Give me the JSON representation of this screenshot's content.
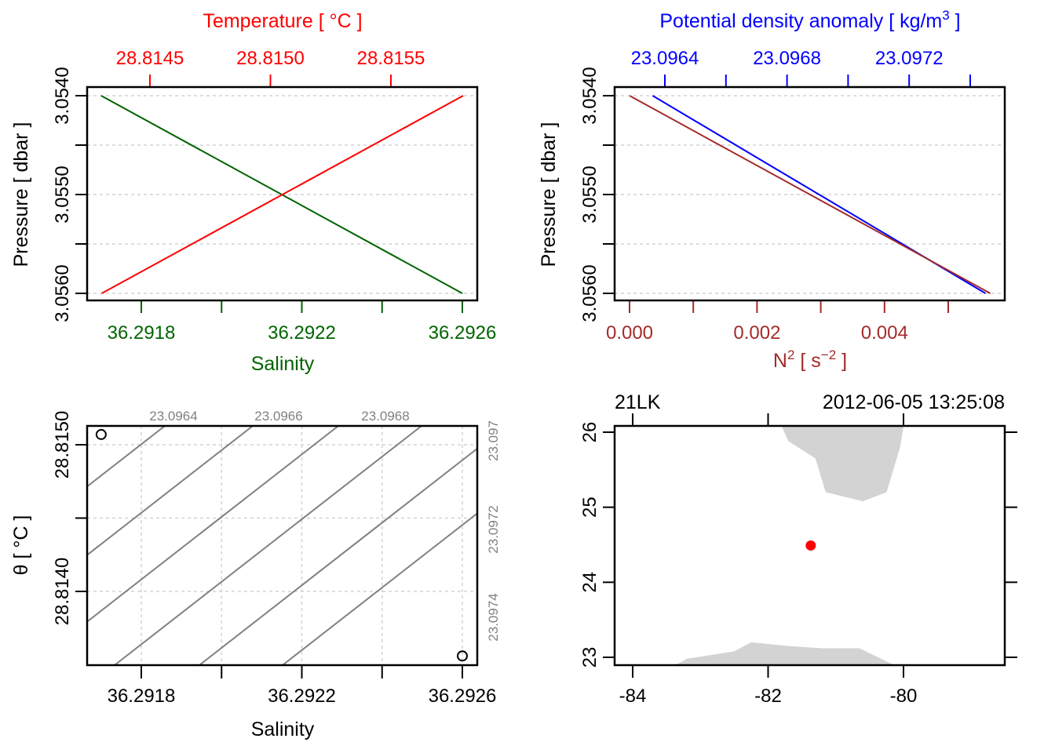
{
  "colors": {
    "temperature": "#ff0000",
    "salinity": "#006400",
    "density": "#0000ff",
    "n2": "#a52a2a",
    "grid": "#d3d3d3",
    "contour": "#808080",
    "land": "#d3d3d3",
    "station": "#ff0000",
    "axis": "#000000"
  },
  "chart_data": [
    {
      "id": "profile-TS",
      "type": "line",
      "ylabel": "Pressure [ dbar ]",
      "yticks": [
        "3.0540",
        "3.0550",
        "3.0560"
      ],
      "ylim": [
        3.056,
        3.054
      ],
      "ygrid": [
        3.054,
        3.0545,
        3.055,
        3.0555,
        3.056
      ],
      "top_axis": {
        "label": "Temperature [ °C ]",
        "ticks": [
          "28.8145",
          "28.8150",
          "28.8155"
        ],
        "tick_values": [
          28.8145,
          28.815,
          28.8155
        ]
      },
      "bottom_axis": {
        "label": "Salinity",
        "ticks": [
          "36.2918",
          "36.2922",
          "36.2926"
        ],
        "tick_values": [
          36.2918,
          36.292,
          36.2922,
          36.2924,
          36.2926
        ]
      },
      "series": [
        {
          "name": "Salinity",
          "x": [
            36.2917,
            36.2926
          ],
          "y": [
            3.054,
            3.056
          ]
        },
        {
          "name": "Temperature",
          "x": [
            28.8143,
            28.8158
          ],
          "y": [
            3.056,
            3.054
          ]
        }
      ]
    },
    {
      "id": "profile-density-N2",
      "type": "line",
      "ylabel": "Pressure [ dbar ]",
      "yticks": [
        "3.0540",
        "3.0550",
        "3.0560"
      ],
      "ylim": [
        3.056,
        3.054
      ],
      "ygrid": [
        3.054,
        3.0545,
        3.055,
        3.0555,
        3.056
      ],
      "top_axis": {
        "label": "Potential density anomaly [ kg/m",
        "label_sup": "3",
        "label_end": " ]",
        "ticks": [
          "23.0964",
          "23.0968",
          "23.0972"
        ],
        "tick_values": [
          23.0964,
          23.0966,
          23.0968,
          23.097,
          23.0972,
          23.0974
        ]
      },
      "bottom_axis": {
        "label": "N",
        "label_sup": "2",
        "label_mid": " [ s",
        "label_sup2": "−2",
        "label_end": " ]",
        "ticks": [
          "0.000",
          "0.002",
          "0.004"
        ],
        "tick_values": [
          0.0,
          0.001,
          0.002,
          0.003,
          0.004,
          0.005
        ]
      },
      "series": [
        {
          "name": "N2",
          "x": [
            0.0,
            0.00566
          ],
          "y": [
            3.054,
            3.056
          ]
        },
        {
          "name": "Potential density anomaly",
          "x": [
            23.09636,
            23.09745
          ],
          "y": [
            3.054,
            3.056
          ]
        }
      ]
    },
    {
      "id": "TS-diagram",
      "type": "scatter",
      "xlabel": "Salinity",
      "ylabel": "θ [ °C ]",
      "xticks": [
        "36.2918",
        "36.2922",
        "36.2926"
      ],
      "xtick_values": [
        36.2918,
        36.292,
        36.2922,
        36.2924,
        36.2926
      ],
      "yticks": [
        "28.8150",
        "28.8140"
      ],
      "ytick_values": [
        28.815,
        28.8145,
        28.814
      ],
      "points": [
        {
          "x": 36.2917,
          "y": 28.81507
        },
        {
          "x": 36.2926,
          "y": 28.81356
        }
      ],
      "contours": {
        "top_labels": [
          "23.0964",
          "23.0966",
          "23.0968"
        ],
        "right_labels": [
          "23.097",
          "23.0972",
          "23.0974"
        ]
      }
    },
    {
      "id": "station-map",
      "type": "scatter",
      "title_left": "21LK",
      "title_right": "2012-06-05 13:25:08",
      "xticks": [
        "-84",
        "-82",
        "-80"
      ],
      "xtick_values": [
        -84,
        -82,
        -80
      ],
      "yticks": [
        "26",
        "25",
        "24",
        "23"
      ],
      "ytick_values": [
        26,
        25,
        24,
        23
      ],
      "xlim": [
        -84.25,
        -78.6
      ],
      "ylim": [
        22.88,
        26.08
      ],
      "station": {
        "lon": -81.37,
        "lat": 24.49
      },
      "land_north": [
        [
          -81.8,
          26.08
        ],
        [
          -81.7,
          25.88
        ],
        [
          -81.3,
          25.65
        ],
        [
          -81.15,
          25.2
        ],
        [
          -80.6,
          25.08
        ],
        [
          -80.25,
          25.2
        ],
        [
          -80.05,
          25.8
        ],
        [
          -80.0,
          26.08
        ]
      ],
      "land_south": [
        [
          -83.4,
          22.88
        ],
        [
          -83.2,
          22.98
        ],
        [
          -82.5,
          23.08
        ],
        [
          -82.25,
          23.2
        ],
        [
          -81.7,
          23.15
        ],
        [
          -81.2,
          23.12
        ],
        [
          -80.65,
          23.12
        ],
        [
          -80.1,
          22.88
        ]
      ]
    }
  ]
}
